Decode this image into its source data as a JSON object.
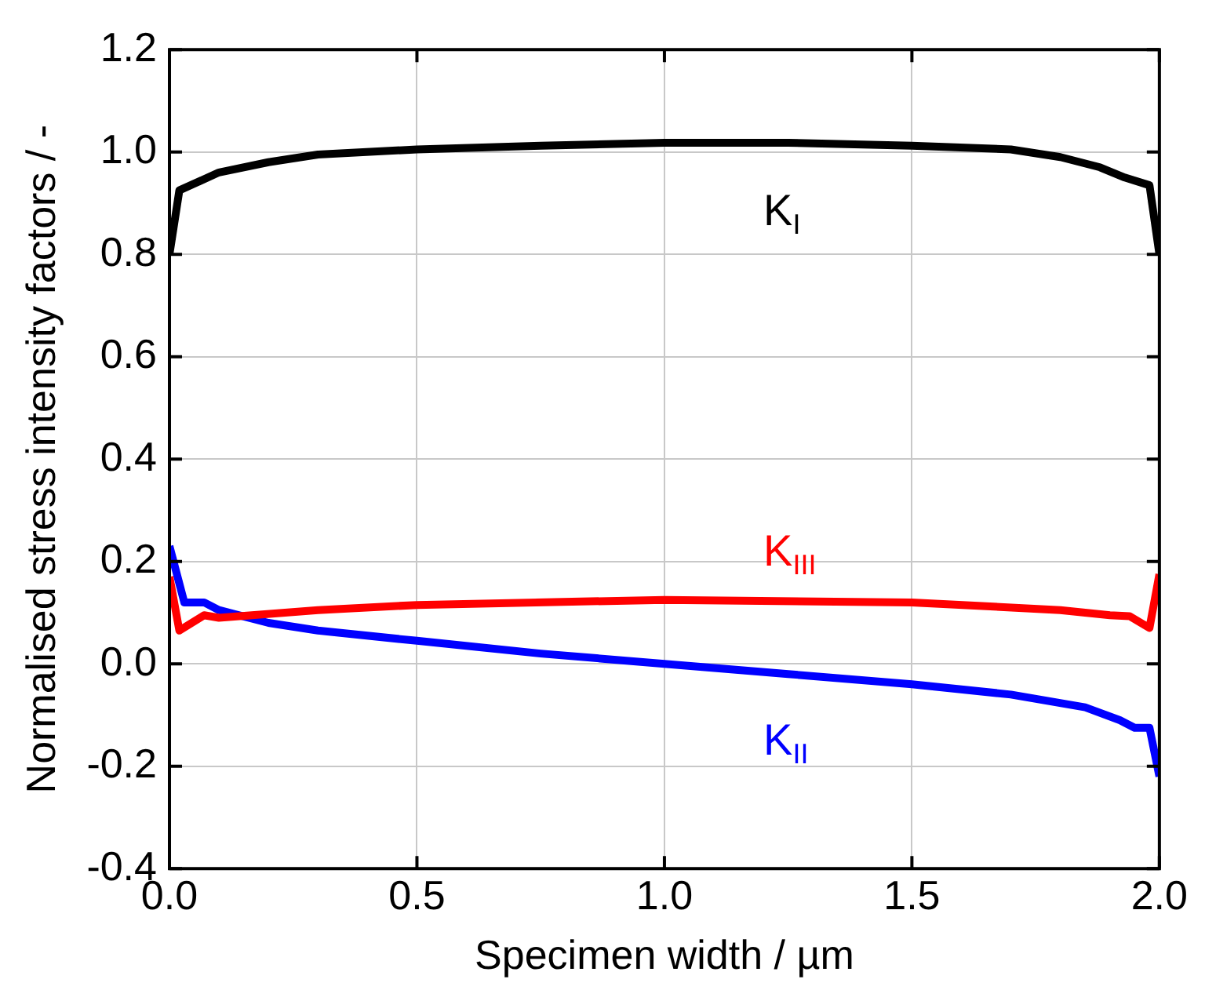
{
  "chart_data": {
    "type": "line",
    "xlabel": "Specimen width / µm",
    "ylabel": "Normalised stress intensity factors / -",
    "xlim": [
      0,
      2.0
    ],
    "xticks": [
      {
        "value": 0,
        "label": "0.0"
      },
      0.5,
      {
        "value": 1,
        "label": "1.0"
      },
      1.5,
      {
        "value": 2,
        "label": "2.0"
      }
    ],
    "ylim": [
      -0.4,
      1.2
    ],
    "yticks": [
      -0.4,
      -0.2,
      {
        "value": 0,
        "label": "0.0"
      },
      0.2,
      0.4,
      0.6,
      0.8,
      {
        "value": 1,
        "label": "1.0"
      },
      1.2
    ],
    "grid": true,
    "legend": false,
    "marker": "none",
    "line_style": "solid",
    "series": [
      {
        "name": "K$_{I}$",
        "color": "#000000",
        "x": [
          0,
          0.02,
          0.1,
          0.2,
          0.3,
          0.5,
          0.75,
          1.0,
          1.25,
          1.5,
          1.7,
          1.8,
          1.88,
          1.93,
          1.98,
          2.0
        ],
        "values": [
          0.8,
          0.925,
          0.96,
          0.98,
          0.995,
          1.005,
          1.012,
          1.018,
          1.018,
          1.012,
          1.005,
          0.99,
          0.97,
          0.95,
          0.935,
          0.8
        ]
      },
      {
        "name": "K$_{III}$",
        "color": "#ff0000",
        "x": [
          0,
          0.02,
          0.07,
          0.1,
          0.3,
          0.5,
          1.0,
          1.5,
          1.8,
          1.9,
          1.94,
          1.98,
          2.0
        ],
        "values": [
          0.17,
          0.065,
          0.095,
          0.09,
          0.105,
          0.115,
          0.125,
          0.12,
          0.105,
          0.095,
          0.093,
          0.07,
          0.175
        ]
      },
      {
        "name": "K$_{II}$",
        "color": "#0000ff",
        "x": [
          0,
          0.03,
          0.07,
          0.1,
          0.2,
          0.3,
          0.5,
          0.75,
          1.0,
          1.25,
          1.5,
          1.7,
          1.85,
          1.92,
          1.95,
          1.98,
          2.0
        ],
        "values": [
          0.23,
          0.12,
          0.12,
          0.105,
          0.08,
          0.065,
          0.045,
          0.02,
          0.0,
          -0.02,
          -0.04,
          -0.06,
          -0.085,
          -0.11,
          -0.125,
          -0.125,
          -0.22
        ]
      }
    ]
  }
}
